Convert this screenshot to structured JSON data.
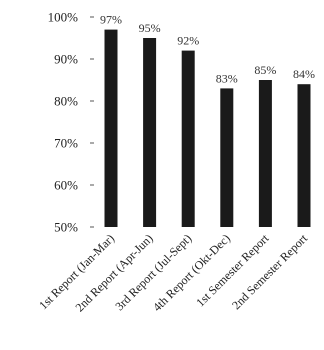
{
  "chart_data": {
    "type": "bar",
    "title": "",
    "xlabel": "",
    "ylabel": "",
    "categories": [
      "1st Report (Jan-Mar)",
      "2nd Report (Apr-Jun)",
      "3rd Report (Jul-Sept)",
      "4th Report (Okt-Dec)",
      "1st Semester Report",
      "2nd Semester Report"
    ],
    "values": [
      97,
      95,
      92,
      83,
      85,
      84
    ],
    "data_labels": [
      "97%",
      "95%",
      "92%",
      "83%",
      "85%",
      "84%"
    ],
    "yticks": [
      50,
      60,
      70,
      80,
      90,
      100
    ],
    "ytick_labels": [
      "50%",
      "60%",
      "70%",
      "80%",
      "90%",
      "100%"
    ],
    "ylim": [
      50,
      100
    ],
    "grid": false,
    "legend": "none",
    "bar_color": "#1a1a1a"
  }
}
